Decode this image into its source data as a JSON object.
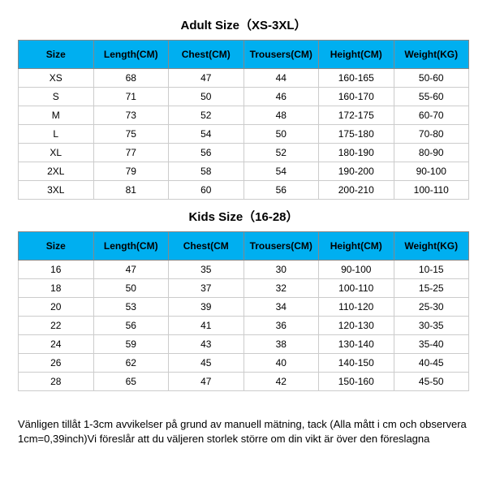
{
  "adult": {
    "title": "Adult Size（XS-3XL）",
    "columns": [
      "Size",
      "Length(CM)",
      "Chest(CM)",
      "Trousers(CM)",
      "Height(CM)",
      "Weight(KG)"
    ],
    "rows": [
      [
        "XS",
        "68",
        "47",
        "44",
        "160-165",
        "50-60"
      ],
      [
        "S",
        "71",
        "50",
        "46",
        "160-170",
        "55-60"
      ],
      [
        "M",
        "73",
        "52",
        "48",
        "172-175",
        "60-70"
      ],
      [
        "L",
        "75",
        "54",
        "50",
        "175-180",
        "70-80"
      ],
      [
        "XL",
        "77",
        "56",
        "52",
        "180-190",
        "80-90"
      ],
      [
        "2XL",
        "79",
        "58",
        "54",
        "190-200",
        "90-100"
      ],
      [
        "3XL",
        "81",
        "60",
        "56",
        "200-210",
        "100-110"
      ]
    ]
  },
  "kids": {
    "title": "Kids Size（16-28）",
    "columns": [
      "Size",
      "Length(CM)",
      "Chest(CM",
      "Trousers(CM)",
      "Height(CM)",
      "Weight(KG)"
    ],
    "rows": [
      [
        "16",
        "47",
        "35",
        "30",
        "90-100",
        "10-15"
      ],
      [
        "18",
        "50",
        "37",
        "32",
        "100-110",
        "15-25"
      ],
      [
        "20",
        "53",
        "39",
        "34",
        "110-120",
        "25-30"
      ],
      [
        "22",
        "56",
        "41",
        "36",
        "120-130",
        "30-35"
      ],
      [
        "24",
        "59",
        "43",
        "38",
        "130-140",
        "35-40"
      ],
      [
        "26",
        "62",
        "45",
        "40",
        "140-150",
        "40-45"
      ],
      [
        "28",
        "65",
        "47",
        "42",
        "150-160",
        "45-50"
      ]
    ]
  },
  "footnote": "Vänligen tillåt 1-3cm avvikelser på grund av manuell mätning, tack (Alla mått i cm och observera 1cm=0,39inch)Vi föreslår att du väljeren storlek större om din vikt är över den föreslagna",
  "style": {
    "header_bg": "#00aff0",
    "border_color": "#888888",
    "cell_border_color": "#cccccc",
    "background": "#ffffff",
    "title_fontsize": 15,
    "th_fontsize": 12,
    "td_fontsize": 12,
    "footnote_fontsize": 13
  }
}
